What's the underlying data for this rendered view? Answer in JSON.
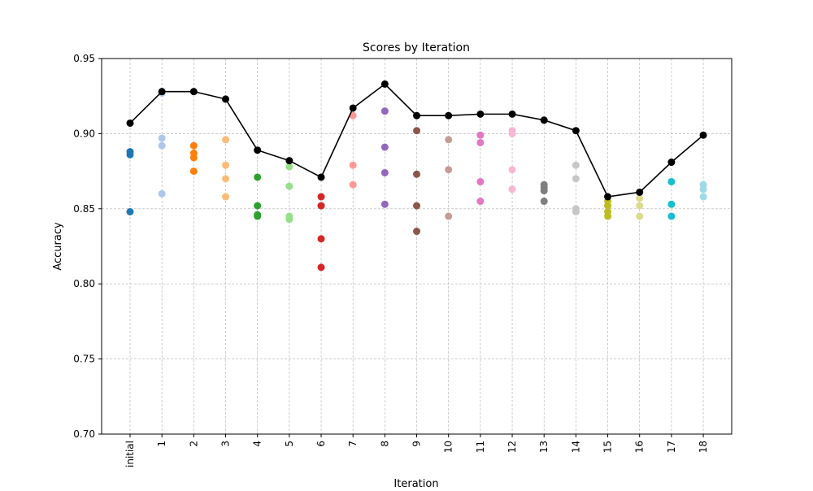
{
  "chart_data": {
    "type": "scatter",
    "title": "Scores by Iteration",
    "xlabel": "Iteration",
    "ylabel": "Accuracy",
    "categories": [
      "initial",
      "1",
      "2",
      "3",
      "4",
      "5",
      "6",
      "7",
      "8",
      "9",
      "10",
      "11",
      "12",
      "13",
      "14",
      "15",
      "16",
      "17",
      "18"
    ],
    "ylim": [
      0.7,
      0.95
    ],
    "yticks": [
      0.7,
      0.75,
      0.8,
      0.85,
      0.9,
      0.95
    ],
    "ytick_labels": [
      "0.70",
      "0.75",
      "0.80",
      "0.85",
      "0.90",
      "0.95"
    ],
    "grid": true,
    "scatter_series": [
      {
        "category": "initial",
        "color": "#1f77b4",
        "values": [
          0.888,
          0.886,
          0.848
        ]
      },
      {
        "category": "1",
        "color": "#aec7e8",
        "values": [
          0.927,
          0.897,
          0.892,
          0.86
        ]
      },
      {
        "category": "2",
        "color": "#ff7f0e",
        "values": [
          0.892,
          0.887,
          0.884,
          0.875
        ]
      },
      {
        "category": "3",
        "color": "#ffbb78",
        "values": [
          0.896,
          0.879,
          0.87,
          0.858
        ]
      },
      {
        "category": "4",
        "color": "#2ca02c",
        "values": [
          0.871,
          0.852,
          0.846,
          0.845
        ]
      },
      {
        "category": "5",
        "color": "#98df8a",
        "values": [
          0.878,
          0.865,
          0.845,
          0.843
        ]
      },
      {
        "category": "6",
        "color": "#d62728",
        "values": [
          0.858,
          0.852,
          0.83,
          0.811
        ]
      },
      {
        "category": "7",
        "color": "#ff9896",
        "values": [
          0.912,
          0.879,
          0.866
        ]
      },
      {
        "category": "8",
        "color": "#9467bd",
        "values": [
          0.915,
          0.891,
          0.874,
          0.853
        ]
      },
      {
        "category": "9",
        "color": "#8c564b",
        "values": [
          0.902,
          0.873,
          0.852,
          0.835
        ]
      },
      {
        "category": "10",
        "color": "#c49c94",
        "values": [
          0.896,
          0.876,
          0.845
        ]
      },
      {
        "category": "11",
        "color": "#e377c2",
        "values": [
          0.899,
          0.894,
          0.868,
          0.855
        ]
      },
      {
        "category": "12",
        "color": "#f7b6d2",
        "values": [
          0.902,
          0.9,
          0.876,
          0.863
        ]
      },
      {
        "category": "13",
        "color": "#7f7f7f",
        "values": [
          0.866,
          0.864,
          0.862,
          0.855
        ]
      },
      {
        "category": "14",
        "color": "#c7c7c7",
        "values": [
          0.879,
          0.87,
          0.85,
          0.848
        ]
      },
      {
        "category": "15",
        "color": "#bcbd22",
        "values": [
          0.855,
          0.852,
          0.848,
          0.845
        ]
      },
      {
        "category": "16",
        "color": "#dbdb8d",
        "values": [
          0.857,
          0.852,
          0.845
        ]
      },
      {
        "category": "17",
        "color": "#17becf",
        "values": [
          0.868,
          0.853,
          0.845
        ]
      },
      {
        "category": "18",
        "color": "#9edae5",
        "values": [
          0.866,
          0.863,
          0.858
        ]
      }
    ],
    "line_series": {
      "color": "#000000",
      "values": [
        0.907,
        0.928,
        0.928,
        0.923,
        0.889,
        0.882,
        0.871,
        0.917,
        0.933,
        0.912,
        0.912,
        0.913,
        0.913,
        0.909,
        0.902,
        0.858,
        0.861,
        0.881,
        0.899
      ]
    }
  }
}
